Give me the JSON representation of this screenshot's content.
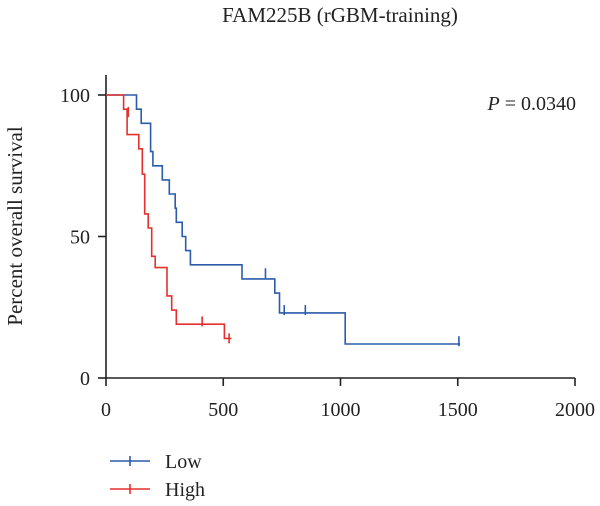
{
  "chart_data": {
    "type": "line",
    "subtype": "kaplan-meier",
    "title": "FAM225B (rGBM-training)",
    "xlabel": "",
    "ylabel": "Percent overall survival",
    "xlim": [
      0,
      2000
    ],
    "ylim": [
      0,
      100
    ],
    "xticks": [
      0,
      500,
      1000,
      1500,
      2000
    ],
    "yticks": [
      0,
      50,
      100
    ],
    "grid": false,
    "legend_position": "bottom-left",
    "annotation": {
      "italic": "P",
      "text": " = 0.0340"
    },
    "series": [
      {
        "name": "Low",
        "color": "#2b5caa",
        "steps": [
          [
            0,
            100
          ],
          [
            130,
            100
          ],
          [
            130,
            95
          ],
          [
            150,
            95
          ],
          [
            150,
            90
          ],
          [
            190,
            90
          ],
          [
            190,
            80
          ],
          [
            200,
            80
          ],
          [
            200,
            75
          ],
          [
            240,
            75
          ],
          [
            240,
            70
          ],
          [
            270,
            70
          ],
          [
            270,
            65
          ],
          [
            295,
            65
          ],
          [
            295,
            60
          ],
          [
            300,
            60
          ],
          [
            300,
            55
          ],
          [
            325,
            55
          ],
          [
            325,
            50
          ],
          [
            340,
            50
          ],
          [
            340,
            45
          ],
          [
            360,
            45
          ],
          [
            360,
            40
          ],
          [
            580,
            40
          ],
          [
            580,
            35
          ],
          [
            720,
            35
          ],
          [
            720,
            30
          ],
          [
            740,
            30
          ],
          [
            740,
            23
          ],
          [
            1020,
            23
          ],
          [
            1020,
            12
          ],
          [
            1510,
            12
          ]
        ],
        "censored": [
          [
            680,
            37
          ],
          [
            760,
            24
          ],
          [
            850,
            24
          ],
          [
            1505,
            13
          ]
        ]
      },
      {
        "name": "High",
        "color": "#e2312c",
        "steps": [
          [
            0,
            100
          ],
          [
            75,
            100
          ],
          [
            75,
            95
          ],
          [
            90,
            95
          ],
          [
            90,
            86
          ],
          [
            140,
            86
          ],
          [
            140,
            81
          ],
          [
            155,
            81
          ],
          [
            155,
            72
          ],
          [
            165,
            72
          ],
          [
            165,
            58
          ],
          [
            180,
            58
          ],
          [
            180,
            53
          ],
          [
            195,
            53
          ],
          [
            195,
            43
          ],
          [
            210,
            43
          ],
          [
            210,
            39
          ],
          [
            260,
            39
          ],
          [
            260,
            29
          ],
          [
            280,
            29
          ],
          [
            280,
            24
          ],
          [
            300,
            24
          ],
          [
            300,
            19
          ],
          [
            505,
            19
          ],
          [
            505,
            14
          ],
          [
            535,
            14
          ]
        ],
        "censored": [
          [
            95,
            94
          ],
          [
            410,
            20
          ],
          [
            525,
            14
          ]
        ]
      }
    ]
  }
}
